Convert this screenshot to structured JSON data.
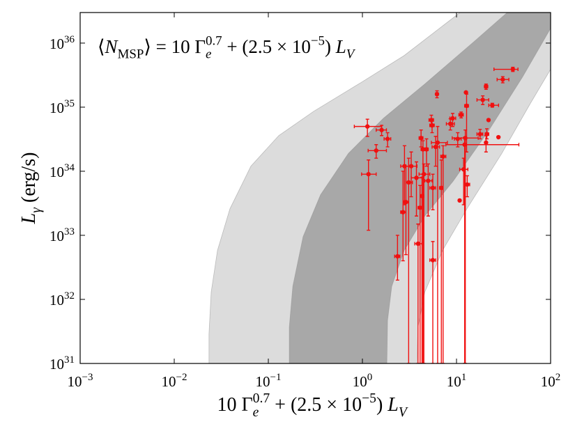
{
  "chart_data": {
    "type": "scatter",
    "annotation": [
      {
        "text": "⟨",
        "role": "roman"
      },
      {
        "text": "N",
        "role": "italic"
      },
      {
        "text": "MSP",
        "role": "sub"
      },
      {
        "text": "⟩ = 10 Γ",
        "role": "roman"
      },
      {
        "text": "e",
        "role": "sub-italic"
      },
      {
        "text": "0.7",
        "role": "sup"
      },
      {
        "text": " + (2.5 × 10",
        "role": "roman"
      },
      {
        "text": "−5",
        "role": "sup"
      },
      {
        "text": ") ",
        "role": "roman"
      },
      {
        "text": "L",
        "role": "italic"
      },
      {
        "text": "V",
        "role": "sub-italic"
      }
    ],
    "xlabel": [
      {
        "text": "10 Γ",
        "role": "roman"
      },
      {
        "text": "e",
        "role": "sub-italic"
      },
      {
        "text": "0.7",
        "role": "sup"
      },
      {
        "text": " + (2.5 × 10",
        "role": "roman"
      },
      {
        "text": "−5",
        "role": "sup"
      },
      {
        "text": ") ",
        "role": "roman"
      },
      {
        "text": "L",
        "role": "italic"
      },
      {
        "text": "V",
        "role": "sub-italic"
      }
    ],
    "ylabel": [
      {
        "text": "L",
        "role": "italic"
      },
      {
        "text": "γ",
        "role": "sub-italic"
      },
      {
        "text": " (erg/s)",
        "role": "roman"
      }
    ],
    "x_scale": "log",
    "y_scale": "log",
    "xlim": [
      0.001,
      100
    ],
    "ylim": [
      1e+31,
      3e+36
    ],
    "xticks": [
      {
        "value": 0.001,
        "label": "10",
        "exponent": "−3"
      },
      {
        "value": 0.01,
        "label": "10",
        "exponent": "−2"
      },
      {
        "value": 0.1,
        "label": "10",
        "exponent": "−1"
      },
      {
        "value": 1,
        "label": "10",
        "exponent": "0"
      },
      {
        "value": 10,
        "label": "10",
        "exponent": "1"
      },
      {
        "value": 100,
        "label": "10",
        "exponent": "2"
      }
    ],
    "yticks": [
      {
        "value": 1e+31,
        "label": "10",
        "exponent": "31"
      },
      {
        "value": 1e+32,
        "label": "10",
        "exponent": "32"
      },
      {
        "value": 1e+33,
        "label": "10",
        "exponent": "33"
      },
      {
        "value": 1e+34,
        "label": "10",
        "exponent": "34"
      },
      {
        "value": 1e+35,
        "label": "10",
        "exponent": "35"
      },
      {
        "value": 1e+36,
        "label": "10",
        "exponent": "36"
      }
    ],
    "bands": [
      {
        "color": "#dcdcdc",
        "left": {
          "x": [
            0.0234,
            0.0234,
            0.0247,
            0.0288,
            0.0391,
            0.0653,
            0.129,
            0.303,
            1.0,
            2.78,
            10.9,
            30.3
          ],
          "y": [
            1e+31,
            2.9e+31,
            1.3e+32,
            5.8e+32,
            2.6e+33,
            1.2e+34,
            3.6e+34,
            8.6e+34,
            2.5e+35,
            6.4e+35,
            3e+36,
            7.8e+36
          ]
        },
        "right": {
          "x": [
            234,
            100,
            60,
            30.3,
            12.9,
            7.1,
            4.6,
            3.9,
            3.8
          ],
          "y": [
            1.7e+36,
            3.9e+35,
            1.1e+35,
            1.9e+34,
            2.6e+33,
            5.8e+32,
            1.3e+32,
            3.7e+31,
            1e+31
          ]
        }
      },
      {
        "color": "#a8a8a8",
        "left": {
          "x": [
            0.167,
            0.167,
            0.182,
            0.234,
            0.359,
            0.71,
            1.67,
            4.6,
            15.3,
            60
          ],
          "y": [
            1e+31,
            3.7e+31,
            1.6e+32,
            9.5e+32,
            4.3e+33,
            1.9e+34,
            6.7e+34,
            2.3e+35,
            1.05e+36,
            6.1e+36
          ]
        },
        "right": {
          "x": [
            198,
            100,
            50.6,
            21.5,
            9.2,
            4.6,
            2.78,
            2.05,
            1.85,
            1.82
          ],
          "y": [
            4.7e+36,
            1.7e+36,
            3e+35,
            4.1e+34,
            7e+33,
            2e+33,
            5.8e+32,
            1.6e+32,
            4.7e+31,
            1e+31
          ]
        }
      }
    ],
    "series": [
      {
        "color": "#f01010",
        "x": [
          1.13,
          1.16,
          1.4,
          1.6,
          1.85,
          2.36,
          2.8,
          2.7,
          2.9,
          3.1,
          3.3,
          3.9,
          3.75,
          4.2,
          4.4,
          4.5,
          4.1,
          4.3,
          4.8,
          5.0,
          5.5,
          5.4,
          5.6,
          5.6,
          6.2,
          6.0,
          6.3,
          6.9,
          7.2,
          8.6,
          9.1,
          10.3,
          10.8,
          11.2,
          11.9,
          12.6,
          12.8,
          12.4,
          13,
          12.2,
          17.8,
          19,
          20.6,
          21,
          20.6,
          21.9,
          24,
          27.9,
          31,
          39.7
        ],
        "y": [
          5e+34,
          9e+33,
          2.1e+34,
          4.4e+34,
          3.2e+34,
          4.7e+32,
          1.2e+34,
          2.3e+33,
          3.3e+33,
          6.7e+33,
          1.2e+34,
          7.4e+32,
          7.9e+33,
          3.3e+34,
          2.2e+34,
          9e+33,
          2.7e+33,
          4.1e+33,
          2.2e+34,
          7.1e+33,
          5.2e+34,
          6.3e+34,
          5.5e+33,
          4.1e+32,
          1.6e+35,
          2.4e+34,
          2.8e+34,
          5.5e+33,
          1.7e+34,
          5.5e+34,
          6.7e+34,
          3.2e+34,
          3.5e+33,
          7.6e+34,
          1.07e+34,
          1.7e+35,
          1.05e+35,
          3.3e+34,
          6.2e+33,
          2.6e+34,
          3.8e+34,
          1.3e+35,
          2.1e+35,
          3.8e+34,
          2.8e+34,
          6.3e+34,
          1.07e+35,
          3.4e+34,
          2.7e+35,
          3.9e+35
        ],
        "x_low": [
          0.82,
          0.98,
          1.15,
          1.4,
          1.7,
          2.2,
          2.55,
          2.55,
          2.75,
          2.9,
          2.9,
          3.6,
          3.3,
          4.0,
          4.2,
          4.0,
          3.9,
          4.1,
          4.6,
          4.6,
          5.2,
          5.1,
          5.2,
          5.2,
          6.0,
          5.5,
          5.4,
          6.6,
          6.8,
          7.8,
          8.5,
          9.5,
          null,
          10.6,
          10.8,
          null,
          12.2,
          9.0,
          12.3,
          7.7,
          16.5,
          16.5,
          19.8,
          20.2,
          null,
          null,
          22,
          null,
          27,
          25
        ],
        "x_high": [
          1.6,
          1.4,
          1.8,
          1.8,
          2.0,
          2.5,
          3.1,
          2.9,
          3.1,
          3.4,
          3.8,
          4.3,
          4.3,
          4.4,
          4.6,
          5.2,
          4.3,
          4.5,
          5.0,
          5.5,
          5.8,
          5.7,
          6.0,
          6.0,
          6.4,
          6.6,
          8.0,
          7.2,
          7.7,
          9.5,
          9.8,
          11.2,
          null,
          11.8,
          13.2,
          null,
          13.4,
          17,
          13.8,
          46,
          19,
          22,
          21.5,
          22,
          null,
          null,
          28,
          null,
          36,
          45
        ],
        "y_low": [
          3.5e+34,
          1.2e+33,
          1.6e+34,
          3.6e+34,
          2.4e+34,
          2e+32,
          3e+33,
          4e+32,
          5e+32,
          1e+31,
          4e+33,
          1e+31,
          2e+33,
          2.4e+34,
          1e+31,
          1e+31,
          1e+31,
          1e+31,
          1.2e+34,
          2e+33,
          4e+34,
          5e+34,
          2.5e+33,
          1e+31,
          1.4e+35,
          1.2e+34,
          1e+31,
          1e+31,
          1e+31,
          4.4e+34,
          5e+34,
          2.4e+34,
          null,
          6.8e+34,
          3e+33,
          null,
          2e+34,
          1e+31,
          4e+33,
          1e+31,
          3.2e+34,
          1.1e+35,
          1.9e+35,
          3.2e+34,
          2e+34,
          null,
          1e+35,
          null,
          2.4e+35,
          3.6e+35
        ],
        "y_high": [
          6.5e+34,
          1.5e+34,
          2.6e+34,
          5.2e+34,
          4e+34,
          1e+33,
          2.5e+34,
          1e+34,
          1.2e+34,
          1.6e+34,
          2e+34,
          1.5e+33,
          1.4e+34,
          4.4e+34,
          3e+34,
          1.3e+34,
          6e+33,
          8e+33,
          3.2e+34,
          1.3e+34,
          6.6e+34,
          7.5e+34,
          9e+33,
          8e+32,
          1.8e+35,
          3.5e+34,
          5e+34,
          1.5e+34,
          2.5e+34,
          6.6e+34,
          8e+34,
          4e+34,
          null,
          8.4e+34,
          1.6e+34,
          null,
          1.6e+35,
          4.4e+34,
          8.5e+33,
          3.4e+34,
          4.5e+34,
          1.5e+35,
          2.3e+35,
          4.6e+34,
          3.6e+34,
          null,
          1.15e+35,
          null,
          3e+35,
          4.2e+35
        ]
      }
    ]
  }
}
